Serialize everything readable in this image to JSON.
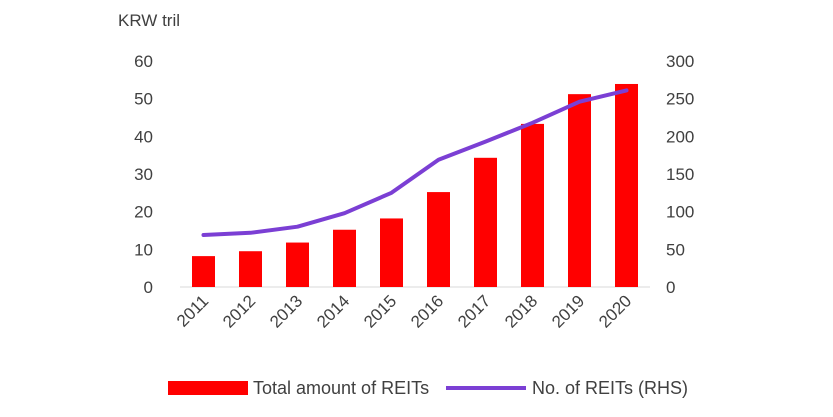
{
  "chart_data": {
    "type": "bar",
    "title": "",
    "xlabel": "",
    "ylabel": "KRW tril",
    "y2label": "",
    "categories": [
      "2011",
      "2012",
      "2013",
      "2014",
      "2015",
      "2016",
      "2017",
      "2018",
      "2019",
      "2020"
    ],
    "ylim": [
      0,
      60
    ],
    "y_ticks": [
      "0",
      "10",
      "20",
      "30",
      "40",
      "50",
      "60"
    ],
    "y2lim": [
      0,
      300
    ],
    "y2_ticks": [
      "0",
      "50",
      "100",
      "150",
      "200",
      "250",
      "300"
    ],
    "grid": false,
    "legend_position": "bottom",
    "series": [
      {
        "name": "Total amount of REITs",
        "type": "bar",
        "axis": "left",
        "color": "#ff0000",
        "values": [
          8.2,
          9.5,
          11.8,
          15.2,
          18.2,
          25.2,
          34.3,
          43.3,
          51.2,
          53.9
        ]
      },
      {
        "name": "No. of REITs (RHS)",
        "type": "line",
        "axis": "right",
        "color": "#7b3fd4",
        "values": [
          69,
          72,
          80,
          98,
          125,
          169,
          193,
          218,
          246,
          261
        ]
      }
    ]
  }
}
